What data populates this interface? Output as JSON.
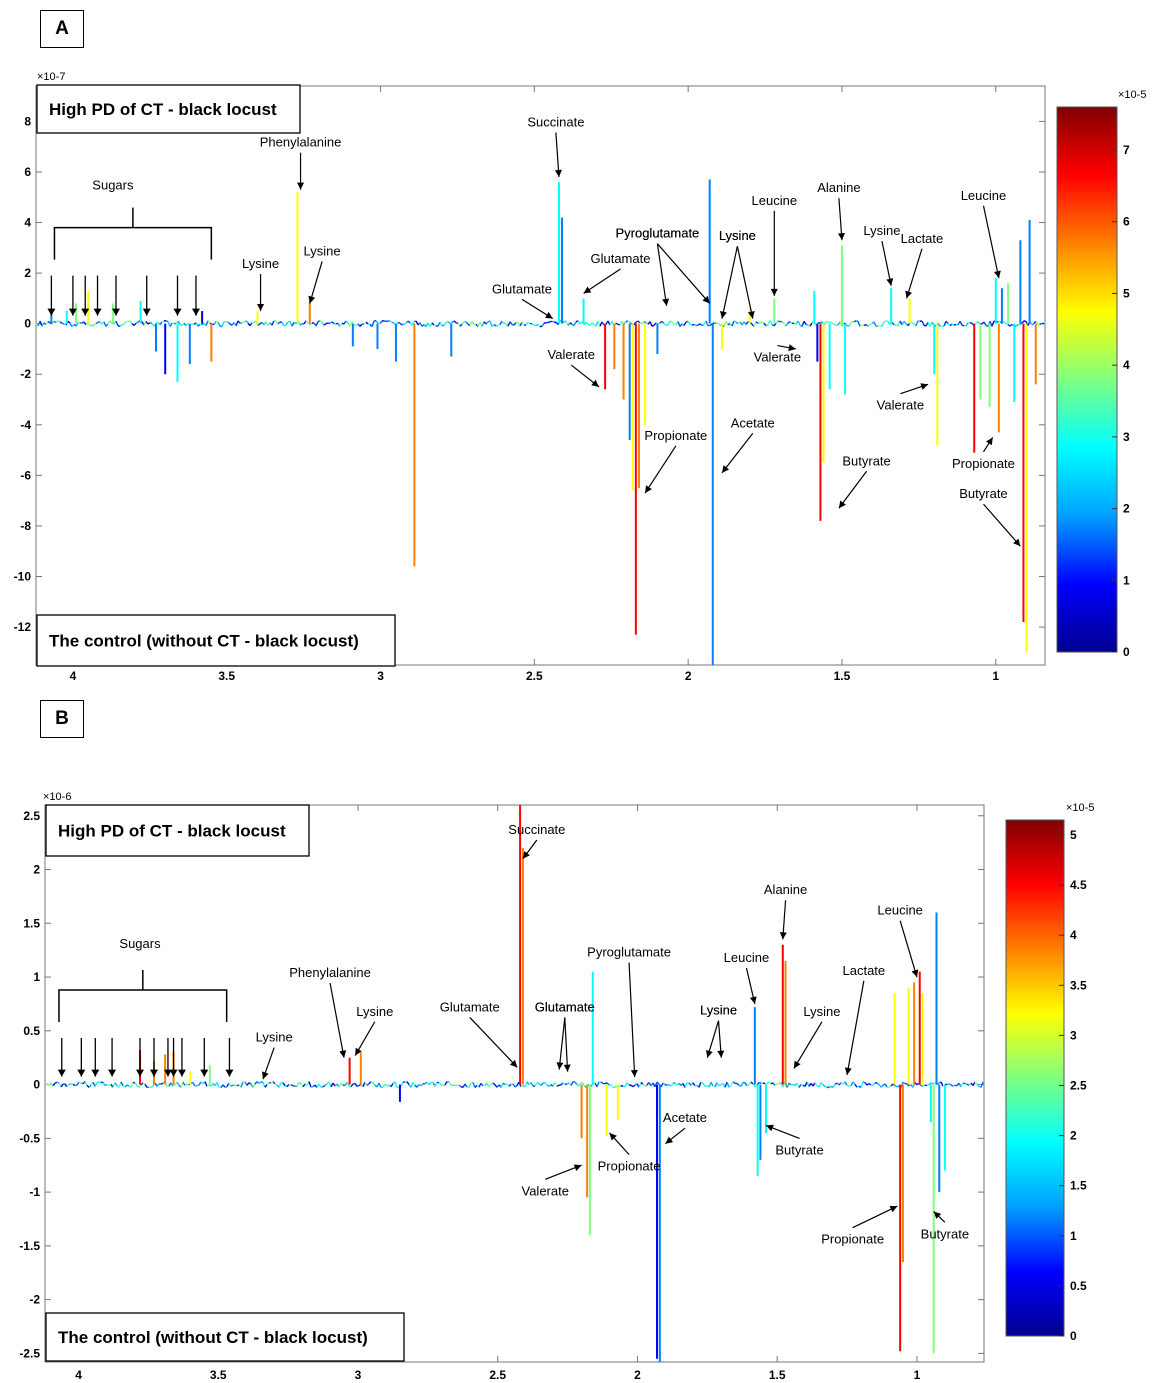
{
  "panels": [
    {
      "id": "A",
      "label": "A"
    },
    {
      "id": "B",
      "label": "B"
    }
  ],
  "chart_data": [
    {
      "type": "line",
      "panel": "A",
      "title": "",
      "xlabel": "",
      "ylabel": "",
      "x_reversed": true,
      "xlim": [
        4.12,
        0.84
      ],
      "ylim": [
        -13.5,
        9.4
      ],
      "y_exponent": "×10-7",
      "xticks": [
        4,
        3.5,
        3,
        2.5,
        2,
        1.5,
        1
      ],
      "yticks": [
        8,
        6,
        4,
        2,
        0,
        -2,
        -4,
        -6,
        -8,
        -10,
        -12
      ],
      "upper_box_label": "High PD of CT - black locust",
      "lower_box_label": "The control (without CT - black locust)",
      "colorbar": {
        "min": 0,
        "max": 7.6,
        "exponent": "×10-5",
        "ticks": [
          7,
          6,
          5,
          4,
          3,
          2,
          1,
          0
        ],
        "colors": [
          "#00008f",
          "#0000ff",
          "#00a0ff",
          "#00ffff",
          "#80ff80",
          "#ffff00",
          "#ff8000",
          "#ff0000",
          "#800000"
        ]
      },
      "spikes": [
        {
          "x": 4.07,
          "y": 0.4,
          "c": 2
        },
        {
          "x": 4.02,
          "y": 0.5,
          "c": 3
        },
        {
          "x": 3.99,
          "y": 0.8,
          "c": 4
        },
        {
          "x": 3.95,
          "y": 1.3,
          "c": 5
        },
        {
          "x": 3.87,
          "y": 0.8,
          "c": 4
        },
        {
          "x": 3.78,
          "y": 0.9,
          "c": 3
        },
        {
          "x": 3.73,
          "y": -1.1,
          "c": 2
        },
        {
          "x": 3.7,
          "y": -2.0,
          "c": 1
        },
        {
          "x": 3.66,
          "y": -2.3,
          "c": 3
        },
        {
          "x": 3.62,
          "y": -1.6,
          "c": 2
        },
        {
          "x": 3.58,
          "y": 0.5,
          "c": 1
        },
        {
          "x": 3.55,
          "y": -1.5,
          "c": 6
        },
        {
          "x": 3.4,
          "y": 0.5,
          "c": 5
        },
        {
          "x": 3.27,
          "y": 5.2,
          "c": 5
        },
        {
          "x": 3.23,
          "y": 0.9,
          "c": 6
        },
        {
          "x": 3.09,
          "y": -0.9,
          "c": 2
        },
        {
          "x": 3.01,
          "y": -1.0,
          "c": 2
        },
        {
          "x": 2.95,
          "y": -1.5,
          "c": 2
        },
        {
          "x": 2.89,
          "y": -9.6,
          "c": 6
        },
        {
          "x": 2.77,
          "y": -1.3,
          "c": 2
        },
        {
          "x": 2.42,
          "y": 5.6,
          "c": 3
        },
        {
          "x": 2.41,
          "y": 4.2,
          "c": 2
        },
        {
          "x": 2.34,
          "y": 1.0,
          "c": 3
        },
        {
          "x": 2.27,
          "y": -2.6,
          "c": 7
        },
        {
          "x": 2.24,
          "y": -1.8,
          "c": 6
        },
        {
          "x": 2.21,
          "y": -3.0,
          "c": 6
        },
        {
          "x": 2.19,
          "y": -4.6,
          "c": 2
        },
        {
          "x": 2.18,
          "y": -6.6,
          "c": 5
        },
        {
          "x": 2.17,
          "y": -12.3,
          "c": 7
        },
        {
          "x": 2.16,
          "y": -6.5,
          "c": 6
        },
        {
          "x": 2.14,
          "y": -4.0,
          "c": 5
        },
        {
          "x": 2.1,
          "y": -1.2,
          "c": 2
        },
        {
          "x": 1.93,
          "y": 5.7,
          "c": 2
        },
        {
          "x": 1.92,
          "y": -13.5,
          "c": 2
        },
        {
          "x": 1.89,
          "y": -1.0,
          "c": 5
        },
        {
          "x": 1.8,
          "y": 0.6,
          "c": 5
        },
        {
          "x": 1.72,
          "y": 1.0,
          "c": 4
        },
        {
          "x": 1.59,
          "y": 1.3,
          "c": 3
        },
        {
          "x": 1.58,
          "y": -1.5,
          "c": 1
        },
        {
          "x": 1.57,
          "y": -7.8,
          "c": 7
        },
        {
          "x": 1.56,
          "y": -5.5,
          "c": 5
        },
        {
          "x": 1.54,
          "y": -2.6,
          "c": 3
        },
        {
          "x": 1.5,
          "y": 3.1,
          "c": 4
        },
        {
          "x": 1.49,
          "y": -2.8,
          "c": 3
        },
        {
          "x": 1.34,
          "y": 1.4,
          "c": 3
        },
        {
          "x": 1.28,
          "y": 1.0,
          "c": 5
        },
        {
          "x": 1.19,
          "y": -4.8,
          "c": 5
        },
        {
          "x": 1.2,
          "y": -2.0,
          "c": 3
        },
        {
          "x": 1.07,
          "y": -5.1,
          "c": 7
        },
        {
          "x": 1.05,
          "y": -3.0,
          "c": 4
        },
        {
          "x": 1.02,
          "y": -3.3,
          "c": 4
        },
        {
          "x": 1.0,
          "y": 1.8,
          "c": 3
        },
        {
          "x": 0.99,
          "y": -4.3,
          "c": 6
        },
        {
          "x": 0.98,
          "y": 1.4,
          "c": 2
        },
        {
          "x": 0.96,
          "y": 1.6,
          "c": 4
        },
        {
          "x": 0.94,
          "y": -3.1,
          "c": 3
        },
        {
          "x": 0.92,
          "y": 3.3,
          "c": 2
        },
        {
          "x": 0.91,
          "y": -11.8,
          "c": 7
        },
        {
          "x": 0.9,
          "y": -13.0,
          "c": 5
        },
        {
          "x": 0.89,
          "y": 4.1,
          "c": 2
        },
        {
          "x": 0.87,
          "y": -2.4,
          "c": 6
        }
      ],
      "annotations": [
        {
          "text": "Sugars",
          "tx": 3.87,
          "ty": 5.3
        },
        {
          "text": "Phenylalanine",
          "tx": 3.26,
          "ty": 7.0,
          "ax": 3.26,
          "ay": 5.3
        },
        {
          "text": "Lysine",
          "tx": 3.39,
          "ty": 2.2,
          "ax": 3.39,
          "ay": 0.5
        },
        {
          "text": "Lysine",
          "tx": 3.19,
          "ty": 2.7,
          "ax": 3.23,
          "ay": 0.8
        },
        {
          "text": "Succinate",
          "tx": 2.43,
          "ty": 7.8,
          "ax": 2.42,
          "ay": 5.8
        },
        {
          "text": "Glutamate",
          "tx": 2.54,
          "ty": 1.2,
          "ax": 2.44,
          "ay": 0.2
        },
        {
          "text": "Glutamate",
          "tx": 2.22,
          "ty": 2.4,
          "ax": 2.34,
          "ay": 1.2
        },
        {
          "text": "Pyroglutamate",
          "tx": 2.1,
          "ty": 3.4,
          "ax": 2.07,
          "ay": 0.7
        },
        {
          "text": "Pyroglutamate",
          "tx": 2.1,
          "ty": 3.4,
          "ax": 1.93,
          "ay": 0.8
        },
        {
          "text": "Valerate",
          "tx": 2.38,
          "ty": -1.4,
          "ax": 2.29,
          "ay": -2.5
        },
        {
          "text": "Propionate",
          "tx": 2.04,
          "ty": -4.6,
          "ax": 2.14,
          "ay": -6.7
        },
        {
          "text": "Acetate",
          "tx": 1.79,
          "ty": -4.1,
          "ax": 1.89,
          "ay": -5.9
        },
        {
          "text": "Lysine",
          "tx": 1.84,
          "ty": 3.3,
          "ax": 1.89,
          "ay": 0.2
        },
        {
          "text": "Lysine",
          "tx": 1.84,
          "ty": 3.3,
          "ax": 1.79,
          "ay": 0.2
        },
        {
          "text": "Leucine",
          "tx": 1.72,
          "ty": 4.7,
          "ax": 1.72,
          "ay": 1.1
        },
        {
          "text": "Valerate",
          "tx": 1.71,
          "ty": -1.5,
          "ax": 1.65,
          "ay": -1.0
        },
        {
          "text": "Alanine",
          "tx": 1.51,
          "ty": 5.2,
          "ax": 1.5,
          "ay": 3.3
        },
        {
          "text": "Lysine",
          "tx": 1.37,
          "ty": 3.5,
          "ax": 1.34,
          "ay": 1.5
        },
        {
          "text": "Lactate",
          "tx": 1.24,
          "ty": 3.2,
          "ax": 1.29,
          "ay": 1.0
        },
        {
          "text": "Leucine",
          "tx": 1.04,
          "ty": 4.9,
          "ax": 0.99,
          "ay": 1.8
        },
        {
          "text": "Valerate",
          "tx": 1.31,
          "ty": -3.4,
          "ax": 1.22,
          "ay": -2.4
        },
        {
          "text": "Butyrate",
          "tx": 1.42,
          "ty": -5.6,
          "ax": 1.51,
          "ay": -7.3
        },
        {
          "text": "Propionate",
          "tx": 1.04,
          "ty": -5.7,
          "ax": 1.01,
          "ay": -4.5
        },
        {
          "text": "Butyrate",
          "tx": 1.04,
          "ty": -6.9,
          "ax": 0.92,
          "ay": -8.8
        }
      ],
      "sugar_bracket": {
        "x1": 4.06,
        "x2": 3.55,
        "y": 3.8,
        "arrows_x": [
          4.07,
          4.0,
          3.96,
          3.92,
          3.86,
          3.76,
          3.66,
          3.6
        ]
      }
    },
    {
      "type": "line",
      "panel": "B",
      "title": "",
      "xlabel": "",
      "ylabel": "",
      "x_reversed": true,
      "xlim": [
        4.12,
        0.76
      ],
      "ylim": [
        -2.58,
        2.6
      ],
      "y_exponent": "×10-6",
      "xticks": [
        4,
        3.5,
        3,
        2.5,
        2,
        1.5,
        1
      ],
      "yticks": [
        2.5,
        2,
        1.5,
        1,
        0.5,
        0,
        -0.5,
        -1,
        -1.5,
        -2,
        -2.5
      ],
      "upper_box_label": "High PD of CT - black locust",
      "lower_box_label": "The control (without CT - black locust)",
      "colorbar": {
        "min": 0,
        "max": 5.15,
        "exponent": "×10-5",
        "ticks": [
          5,
          4.5,
          4,
          3.5,
          3,
          2.5,
          2,
          1.5,
          1,
          0.5,
          0
        ],
        "colors": [
          "#00008f",
          "#0000ff",
          "#00a0ff",
          "#00ffff",
          "#80ff80",
          "#ffff00",
          "#ff8000",
          "#ff0000",
          "#800000"
        ]
      },
      "spikes": [
        {
          "x": 3.78,
          "y": 0.32,
          "c": 7
        },
        {
          "x": 3.73,
          "y": 0.22,
          "c": 6
        },
        {
          "x": 3.69,
          "y": 0.28,
          "c": 6
        },
        {
          "x": 3.66,
          "y": 0.31,
          "c": 6
        },
        {
          "x": 3.6,
          "y": 0.12,
          "c": 5
        },
        {
          "x": 3.53,
          "y": 0.18,
          "c": 4
        },
        {
          "x": 3.03,
          "y": 0.25,
          "c": 7
        },
        {
          "x": 2.99,
          "y": 0.3,
          "c": 6
        },
        {
          "x": 2.85,
          "y": -0.16,
          "c": 1
        },
        {
          "x": 2.42,
          "y": 2.6,
          "c": 7
        },
        {
          "x": 2.41,
          "y": 2.2,
          "c": 6
        },
        {
          "x": 2.2,
          "y": -0.5,
          "c": 6
        },
        {
          "x": 2.18,
          "y": -1.05,
          "c": 6
        },
        {
          "x": 2.17,
          "y": -1.4,
          "c": 4
        },
        {
          "x": 2.16,
          "y": 1.05,
          "c": 3
        },
        {
          "x": 2.11,
          "y": -0.48,
          "c": 5
        },
        {
          "x": 2.07,
          "y": -0.33,
          "c": 5
        },
        {
          "x": 1.93,
          "y": -2.55,
          "c": 1
        },
        {
          "x": 1.92,
          "y": -2.58,
          "c": 2
        },
        {
          "x": 1.58,
          "y": 0.72,
          "c": 2
        },
        {
          "x": 1.57,
          "y": -0.85,
          "c": 3
        },
        {
          "x": 1.56,
          "y": -0.7,
          "c": 2
        },
        {
          "x": 1.54,
          "y": -0.45,
          "c": 3
        },
        {
          "x": 1.48,
          "y": 1.3,
          "c": 7
        },
        {
          "x": 1.47,
          "y": 1.15,
          "c": 6
        },
        {
          "x": 1.08,
          "y": 0.85,
          "c": 5
        },
        {
          "x": 1.06,
          "y": -2.48,
          "c": 7
        },
        {
          "x": 1.05,
          "y": -1.65,
          "c": 6
        },
        {
          "x": 1.03,
          "y": 0.9,
          "c": 5
        },
        {
          "x": 1.01,
          "y": 0.95,
          "c": 6
        },
        {
          "x": 0.99,
          "y": 1.05,
          "c": 7
        },
        {
          "x": 0.98,
          "y": 0.85,
          "c": 5
        },
        {
          "x": 0.95,
          "y": -0.35,
          "c": 3
        },
        {
          "x": 0.94,
          "y": -2.5,
          "c": 4
        },
        {
          "x": 0.93,
          "y": 1.6,
          "c": 2
        },
        {
          "x": 0.92,
          "y": -1.0,
          "c": 2
        },
        {
          "x": 0.9,
          "y": -0.8,
          "c": 3
        }
      ],
      "annotations": [
        {
          "text": "Sugars",
          "tx": 3.78,
          "ty": 1.27
        },
        {
          "text": "Lysine",
          "tx": 3.3,
          "ty": 0.4,
          "ax": 3.34,
          "ay": 0.05
        },
        {
          "text": "Phenylalanine",
          "tx": 3.1,
          "ty": 1.0,
          "ax": 3.05,
          "ay": 0.25
        },
        {
          "text": "Lysine",
          "tx": 2.94,
          "ty": 0.64,
          "ax": 3.01,
          "ay": 0.27
        },
        {
          "text": "Succinate",
          "tx": 2.36,
          "ty": 2.33,
          "ax": 2.41,
          "ay": 2.1
        },
        {
          "text": "Glutamate",
          "tx": 2.6,
          "ty": 0.68,
          "ax": 2.43,
          "ay": 0.16
        },
        {
          "text": "Glutamate",
          "tx": 2.26,
          "ty": 0.68,
          "ax": 2.28,
          "ay": 0.14
        },
        {
          "text": "Glutamate",
          "tx": 2.26,
          "ty": 0.68,
          "ax": 2.25,
          "ay": 0.12
        },
        {
          "text": "Pyroglutamate",
          "tx": 2.03,
          "ty": 1.19,
          "ax": 2.01,
          "ay": 0.07
        },
        {
          "text": "Valerate",
          "tx": 2.33,
          "ty": -1.03,
          "ax": 2.2,
          "ay": -0.75
        },
        {
          "text": "Propionate",
          "tx": 2.03,
          "ty": -0.8,
          "ax": 2.1,
          "ay": -0.45
        },
        {
          "text": "Acetate",
          "tx": 1.83,
          "ty": -0.35,
          "ax": 1.9,
          "ay": -0.55
        },
        {
          "text": "Lysine",
          "tx": 1.71,
          "ty": 0.65,
          "ax": 1.75,
          "ay": 0.25
        },
        {
          "text": "Lysine",
          "tx": 1.71,
          "ty": 0.65,
          "ax": 1.7,
          "ay": 0.25
        },
        {
          "text": "Lysine",
          "tx": 1.34,
          "ty": 0.64,
          "ax": 1.44,
          "ay": 0.15
        },
        {
          "text": "Leucine",
          "tx": 1.61,
          "ty": 1.14,
          "ax": 1.58,
          "ay": 0.75
        },
        {
          "text": "Alanine",
          "tx": 1.47,
          "ty": 1.77,
          "ax": 1.48,
          "ay": 1.35
        },
        {
          "text": "Butyrate",
          "tx": 1.42,
          "ty": -0.65,
          "ax": 1.54,
          "ay": -0.38
        },
        {
          "text": "Lactate",
          "tx": 1.19,
          "ty": 1.02,
          "ax": 1.25,
          "ay": 0.09
        },
        {
          "text": "Leucine",
          "tx": 1.06,
          "ty": 1.58,
          "ax": 1.0,
          "ay": 1.0
        },
        {
          "text": "Propionate",
          "tx": 1.23,
          "ty": -1.48,
          "ax": 1.07,
          "ay": -1.13
        },
        {
          "text": "Butyrate",
          "tx": 0.9,
          "ty": -1.43,
          "ax": 0.94,
          "ay": -1.18
        }
      ],
      "sugar_bracket": {
        "x1": 4.07,
        "x2": 3.47,
        "y": 0.88,
        "arrows_x": [
          4.06,
          3.99,
          3.94,
          3.88,
          3.78,
          3.73,
          3.68,
          3.66,
          3.63,
          3.55,
          3.46
        ]
      }
    }
  ]
}
